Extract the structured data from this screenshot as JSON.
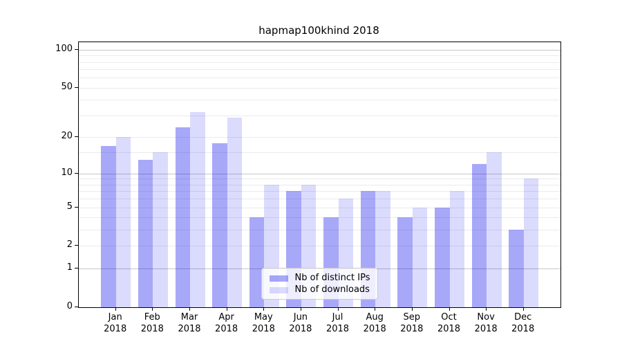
{
  "chart_data": {
    "type": "bar",
    "title": "hapmap100khind 2018",
    "year_label": "2018",
    "categories": [
      "Jan",
      "Feb",
      "Mar",
      "Apr",
      "May",
      "Jun",
      "Jul",
      "Aug",
      "Sep",
      "Oct",
      "Nov",
      "Dec"
    ],
    "series": [
      {
        "name": "Nb of distinct IPs",
        "color": "rgba(0,0,238,0.34)",
        "values": [
          17,
          13,
          24,
          18,
          4,
          7,
          4,
          7,
          4,
          5,
          12,
          3
        ]
      },
      {
        "name": "Nb of downloads",
        "color": "rgba(0,0,238,0.14)",
        "values": [
          20,
          15,
          32,
          29,
          8,
          8,
          6,
          7,
          5,
          7,
          15,
          9
        ]
      }
    ],
    "yscale": "log1p",
    "ylim": [
      0,
      115
    ],
    "y_ticks": [
      100,
      50,
      20,
      10,
      5,
      2,
      1,
      0
    ],
    "grid_major": [
      1,
      10,
      100
    ],
    "grid_minor": [
      2,
      3,
      4,
      5,
      6,
      7,
      8,
      9,
      15,
      20,
      30,
      40,
      50,
      60,
      70,
      80,
      90
    ],
    "grid": "horizontal",
    "legend_position": "lower center",
    "colors": {
      "bar_distinct_ips": "rgba(0,0,238,0.34)",
      "bar_downloads": "rgba(0,0,238,0.14)",
      "grid_major": "#c6c6c6",
      "grid_minor": "#ebebeb",
      "axis": "#000000"
    }
  }
}
